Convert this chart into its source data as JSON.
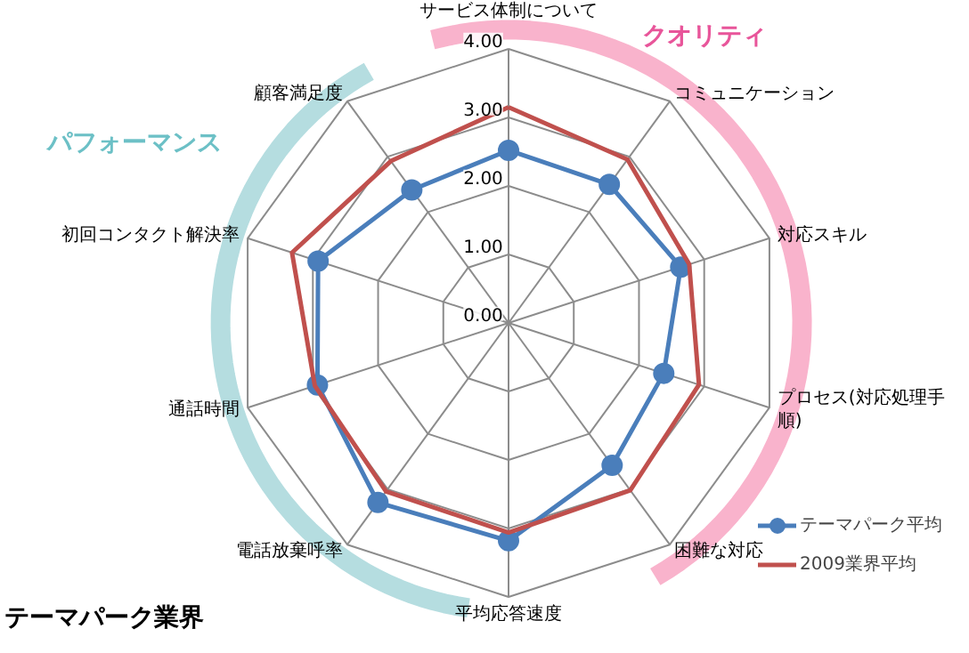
{
  "chart_data": {
    "type": "radar",
    "categories": [
      "サービス体制について",
      "コミュニケーション",
      "対応スキル",
      "プロセス(対応処理手順)",
      "困難な対応",
      "平均応答速度",
      "電話放棄呼率",
      "通話時間",
      "初回コンタクト解決率",
      "顧客満足度"
    ],
    "series": [
      {
        "name": "テーマパーク平均",
        "color": "#4a7ebb",
        "marker": "circle",
        "values": [
          2.52,
          2.5,
          2.64,
          2.38,
          2.57,
          3.18,
          3.24,
          2.93,
          2.92,
          2.4
        ]
      },
      {
        "name": "2009業界平均",
        "color": "#c0504d",
        "marker": "none",
        "values": [
          3.15,
          2.95,
          2.77,
          2.92,
          3.02,
          3.06,
          3.04,
          2.97,
          3.32,
          2.92
        ]
      }
    ],
    "ylim": [
      0,
      4
    ],
    "yticks": [
      {
        "value": 0,
        "label": "0.00"
      },
      {
        "value": 1,
        "label": "1.00"
      },
      {
        "value": 2,
        "label": "2.00"
      },
      {
        "value": 3,
        "label": "3.00"
      },
      {
        "value": 4,
        "label": "4.00"
      }
    ],
    "grid": true,
    "legend": "bottom right",
    "line_style": "solid",
    "annotations": [
      "クオリティ",
      "パフォーマンス",
      "テーマパーク業界"
    ]
  }
}
